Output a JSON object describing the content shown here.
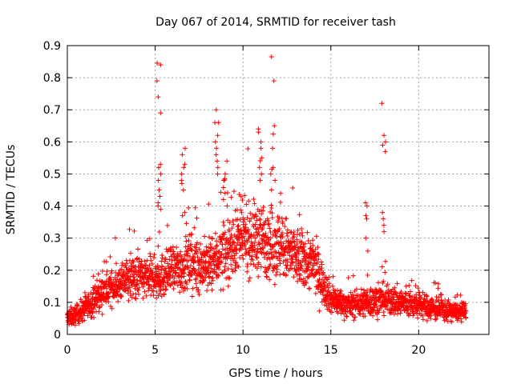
{
  "chart_data": {
    "type": "scatter",
    "title": "Day 067 of 2014, SRMTID for receiver tash",
    "xlabel": "GPS time / hours",
    "ylabel": "SRMTID / TECUs",
    "xlim": [
      0,
      24
    ],
    "ylim": [
      0,
      0.9
    ],
    "xticks": [
      0,
      5,
      10,
      15,
      20
    ],
    "xtick_labels": [
      "0",
      "5",
      "10",
      "15",
      "20"
    ],
    "yticks": [
      0,
      0.1,
      0.2,
      0.3,
      0.4,
      0.5,
      0.6,
      0.7,
      0.8,
      0.9
    ],
    "ytick_labels": [
      "0",
      "0.1",
      "0.2",
      "0.3",
      "0.4",
      "0.5",
      "0.6",
      "0.7",
      "0.8",
      "0.9"
    ],
    "grid": true,
    "marker": "+",
    "color": "#ff0000",
    "series": [
      {
        "name": "SRMTID",
        "trend": {
          "x": [
            0,
            0.5,
            1,
            2,
            3,
            4,
            5,
            6,
            7,
            8,
            9,
            10,
            11,
            12,
            13,
            14,
            15,
            16,
            17,
            18,
            19,
            20,
            21,
            22,
            22.7
          ],
          "y": [
            0.05,
            0.06,
            0.08,
            0.13,
            0.16,
            0.18,
            0.17,
            0.2,
            0.22,
            0.21,
            0.26,
            0.3,
            0.3,
            0.28,
            0.24,
            0.22,
            0.11,
            0.09,
            0.1,
            0.11,
            0.1,
            0.09,
            0.08,
            0.07,
            0.07
          ],
          "spread": [
            0.03,
            0.03,
            0.04,
            0.05,
            0.06,
            0.07,
            0.07,
            0.08,
            0.09,
            0.09,
            0.1,
            0.11,
            0.12,
            0.12,
            0.1,
            0.09,
            0.05,
            0.04,
            0.05,
            0.05,
            0.05,
            0.04,
            0.04,
            0.03,
            0.03
          ]
        },
        "bursts": [
          {
            "x": 5.2,
            "y": [
              0.84,
              0.845,
              0.79,
              0.74,
              0.69,
              0.53,
              0.52,
              0.5,
              0.48,
              0.45,
              0.43,
              0.41,
              0.4,
              0.39
            ]
          },
          {
            "x": 6.6,
            "y": [
              0.58,
              0.56,
              0.53,
              0.52,
              0.5,
              0.48,
              0.47,
              0.45,
              0.38,
              0.37
            ]
          },
          {
            "x": 8.5,
            "y": [
              0.7,
              0.66,
              0.66,
              0.62,
              0.6,
              0.58,
              0.56,
              0.54,
              0.52,
              0.5
            ]
          },
          {
            "x": 9.0,
            "y": [
              0.54,
              0.5,
              0.48,
              0.44,
              0.42,
              0.4
            ]
          },
          {
            "x": 11.0,
            "y": [
              0.64,
              0.63,
              0.6,
              0.58,
              0.55,
              0.52,
              0.5,
              0.48
            ]
          },
          {
            "x": 11.7,
            "y": [
              0.865,
              0.79,
              0.65,
              0.58,
              0.52,
              0.5,
              0.48,
              0.45
            ]
          },
          {
            "x": 18.0,
            "y": [
              0.72,
              0.62,
              0.6,
              0.59,
              0.57,
              0.38,
              0.36,
              0.34,
              0.32
            ]
          },
          {
            "x": 17.0,
            "y": [
              0.41,
              0.4,
              0.37,
              0.36,
              0.3,
              0.26
            ]
          }
        ]
      }
    ]
  }
}
